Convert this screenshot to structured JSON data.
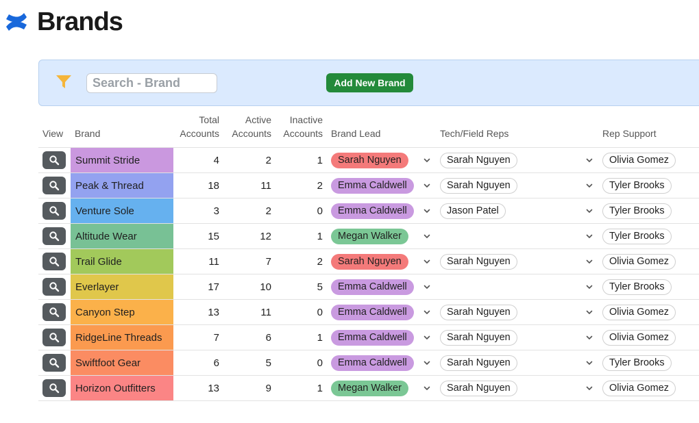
{
  "page": {
    "title": "Brands"
  },
  "toolbar": {
    "search_placeholder": "Search - Brand",
    "add_label": "Add New Brand"
  },
  "colors": {
    "lead_sarah": "#f47a7a",
    "lead_emma": "#c99ae0",
    "lead_megan": "#7bc795"
  },
  "table": {
    "headers": {
      "view": "View",
      "brand": "Brand",
      "total_1": "Total",
      "total_2": "Accounts",
      "active_1": "Active",
      "active_2": "Accounts",
      "inactive_1": "Inactive",
      "inactive_2": "Accounts",
      "lead": "Brand Lead",
      "tech": "Tech/Field Reps",
      "support": "Rep Support"
    },
    "rows": [
      {
        "brand": "Summit Stride",
        "color": "#ca98df",
        "total": "4",
        "active": "2",
        "inactive": "1",
        "lead": "Sarah Nguyen",
        "lead_color": "#f47a7a",
        "tech": "Sarah Nguyen",
        "support": "Olivia Gomez"
      },
      {
        "brand": "Peak & Thread",
        "color": "#93a2f0",
        "total": "18",
        "active": "11",
        "inactive": "2",
        "lead": "Emma Caldwell",
        "lead_color": "#c99ae0",
        "tech": "Sarah Nguyen",
        "support": "Tyler Brooks"
      },
      {
        "brand": "Venture Sole",
        "color": "#66b1ef",
        "total": "3",
        "active": "2",
        "inactive": "0",
        "lead": "Emma Caldwell",
        "lead_color": "#c99ae0",
        "tech": "Jason Patel",
        "support": "Tyler Brooks"
      },
      {
        "brand": "Altitude Wear",
        "color": "#78c195",
        "total": "15",
        "active": "12",
        "inactive": "1",
        "lead": "Megan Walker",
        "lead_color": "#7bc795",
        "tech": "",
        "support": "Tyler Brooks"
      },
      {
        "brand": "Trail Glide",
        "color": "#a2c95b",
        "total": "11",
        "active": "7",
        "inactive": "2",
        "lead": "Sarah Nguyen",
        "lead_color": "#f47a7a",
        "tech": "Sarah Nguyen",
        "support": "Olivia Gomez"
      },
      {
        "brand": "Everlayer",
        "color": "#e0c74b",
        "total": "17",
        "active": "10",
        "inactive": "5",
        "lead": "Emma Caldwell",
        "lead_color": "#c99ae0",
        "tech": "",
        "support": "Tyler Brooks"
      },
      {
        "brand": "Canyon Step",
        "color": "#fbb14a",
        "total": "13",
        "active": "11",
        "inactive": "0",
        "lead": "Emma Caldwell",
        "lead_color": "#c99ae0",
        "tech": "Sarah Nguyen",
        "support": "Olivia Gomez"
      },
      {
        "brand": "RidgeLine Threads",
        "color": "#fb9a4f",
        "total": "7",
        "active": "6",
        "inactive": "1",
        "lead": "Emma Caldwell",
        "lead_color": "#c99ae0",
        "tech": "Sarah Nguyen",
        "support": "Olivia Gomez"
      },
      {
        "brand": "Swiftfoot Gear",
        "color": "#fb8c62",
        "total": "6",
        "active": "5",
        "inactive": "0",
        "lead": "Emma Caldwell",
        "lead_color": "#c99ae0",
        "tech": "Sarah Nguyen",
        "support": "Tyler Brooks"
      },
      {
        "brand": "Horizon Outfitters",
        "color": "#fb8585",
        "total": "13",
        "active": "9",
        "inactive": "1",
        "lead": "Megan Walker",
        "lead_color": "#7bc795",
        "tech": "Sarah Nguyen",
        "support": "Olivia Gomez"
      }
    ]
  }
}
